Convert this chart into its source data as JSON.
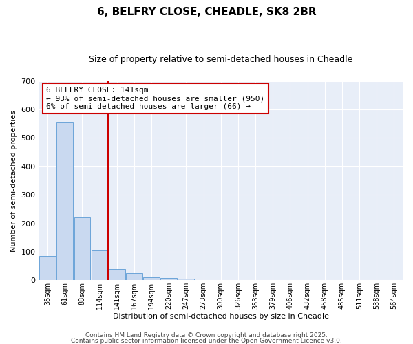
{
  "title1": "6, BELFRY CLOSE, CHEADLE, SK8 2BR",
  "title2": "Size of property relative to semi-detached houses in Cheadle",
  "xlabel": "Distribution of semi-detached houses by size in Cheadle",
  "ylabel": "Number of semi-detached properties",
  "categories": [
    "35sqm",
    "61sqm",
    "88sqm",
    "114sqm",
    "141sqm",
    "167sqm",
    "194sqm",
    "220sqm",
    "247sqm",
    "273sqm",
    "300sqm",
    "326sqm",
    "353sqm",
    "379sqm",
    "406sqm",
    "432sqm",
    "458sqm",
    "485sqm",
    "511sqm",
    "538sqm",
    "564sqm"
  ],
  "values": [
    85,
    555,
    220,
    105,
    40,
    25,
    10,
    8,
    5,
    0,
    0,
    0,
    0,
    0,
    0,
    0,
    0,
    0,
    0,
    0,
    0
  ],
  "bar_color": "#c9d9f0",
  "bar_edge_color": "#5b9bd5",
  "redline_label": "6 BELFRY CLOSE: 141sqm",
  "annotation_line1": "← 93% of semi-detached houses are smaller (950)",
  "annotation_line2": "6% of semi-detached houses are larger (66) →",
  "annotation_box_color": "#ffffff",
  "annotation_box_edge": "#cc0000",
  "redline_color": "#cc0000",
  "ylim": [
    0,
    700
  ],
  "background_color": "#e8eef8",
  "grid_color": "#ffffff",
  "footer1": "Contains HM Land Registry data © Crown copyright and database right 2025.",
  "footer2": "Contains public sector information licensed under the Open Government Licence v3.0.",
  "title1_fontsize": 11,
  "title2_fontsize": 9,
  "annotation_fontsize": 8,
  "footer_fontsize": 6.5,
  "ylabel_fontsize": 8,
  "xlabel_fontsize": 8
}
